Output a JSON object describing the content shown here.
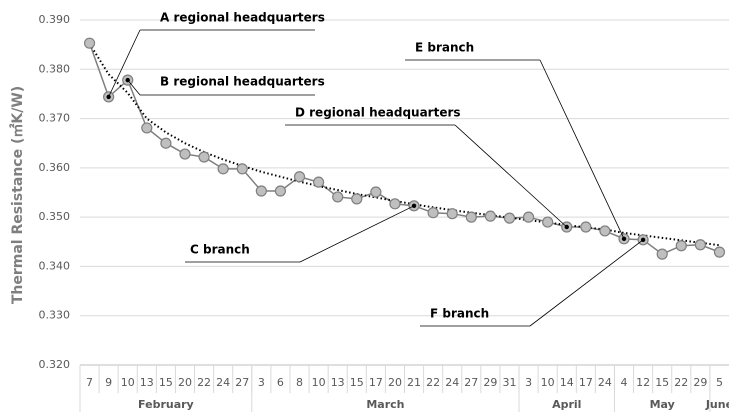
{
  "chart_data": {
    "type": "line",
    "y_label": "Thermal Resistance (㎡K/W)",
    "categories": [
      "7",
      "9",
      "10",
      "13",
      "15",
      "20",
      "22",
      "24",
      "27",
      "3",
      "6",
      "8",
      "10",
      "13",
      "15",
      "17",
      "20",
      "21",
      "22",
      "24",
      "27",
      "29",
      "31",
      "3",
      "10",
      "14",
      "17",
      "24",
      "4",
      "12",
      "15",
      "22",
      "29",
      "5"
    ],
    "months": [
      "February",
      "February",
      "February",
      "February",
      "February",
      "February",
      "February",
      "February",
      "February",
      "March",
      "March",
      "March",
      "March",
      "March",
      "March",
      "March",
      "March",
      "March",
      "March",
      "March",
      "March",
      "March",
      "March",
      "April",
      "April",
      "April",
      "April",
      "April",
      "May",
      "May",
      "May",
      "May",
      "May",
      "June"
    ],
    "series": [
      {
        "color": "#7f7f7f",
        "values": [
          0.3853,
          0.3744,
          0.3778,
          0.3681,
          0.365,
          0.3628,
          0.3622,
          0.3598,
          0.3598,
          0.3553,
          0.3553,
          0.3582,
          0.3571,
          0.3541,
          0.3537,
          0.3551,
          0.3527,
          0.3523,
          0.3509,
          0.3507,
          0.35,
          0.3502,
          0.3498,
          0.35,
          0.349,
          0.348,
          0.348,
          0.3472,
          0.3456,
          0.3454,
          0.3425,
          0.3442,
          0.3444,
          0.3429
        ]
      }
    ],
    "trendline": {
      "color": "#000000",
      "values": [
        0.3852,
        0.379,
        0.3752,
        0.37,
        0.3672,
        0.365,
        0.3632,
        0.3617,
        0.3604,
        0.3592,
        0.3582,
        0.3572,
        0.3563,
        0.3555,
        0.3547,
        0.354,
        0.3533,
        0.3526,
        0.352,
        0.3514,
        0.3509,
        0.3504,
        0.3499,
        0.3494,
        0.3489,
        0.3484,
        0.3479,
        0.3475,
        0.3468,
        0.3463,
        0.3458,
        0.3453,
        0.3448,
        0.3443
      ]
    },
    "annotations": [
      {
        "text": "A regional headquarters"
      },
      {
        "text": "B regional headquarters"
      },
      {
        "text": "D regional headquarters"
      },
      {
        "text": "E branch"
      },
      {
        "text": "C branch"
      },
      {
        "text": "F branch"
      }
    ],
    "ylim": [
      0.32,
      0.39
    ],
    "yticks": [
      {
        "value": 0.32,
        "label": "0.320"
      },
      {
        "value": 0.33,
        "label": "0.330"
      },
      {
        "value": 0.34,
        "label": "0.340"
      },
      {
        "value": 0.35,
        "label": "0.350"
      },
      {
        "value": 0.36,
        "label": "0.360"
      },
      {
        "value": 0.37,
        "label": "0.370"
      },
      {
        "value": 0.38,
        "label": "0.380"
      },
      {
        "value": 0.39,
        "label": "0.390"
      }
    ],
    "grid": true
  }
}
